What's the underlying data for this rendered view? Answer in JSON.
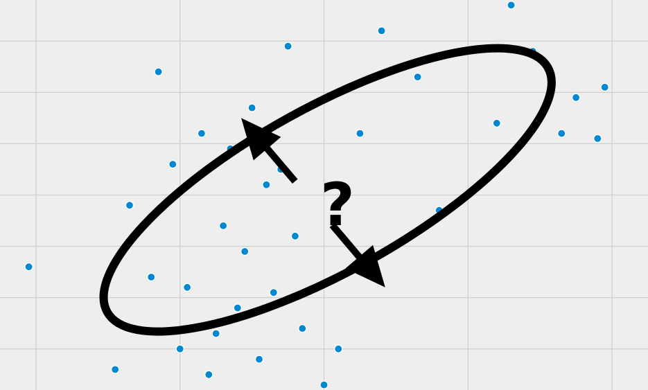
{
  "chart_data": {
    "type": "scatter",
    "title": "",
    "xlabel": "",
    "ylabel": "",
    "xlim": [
      -4.5,
      4.5
    ],
    "ylim": [
      -3.8,
      3.8
    ],
    "grid": true,
    "legend": "none",
    "point_color": "#0288d1",
    "background": "#eeeeee",
    "grid_color": "#cfcfcf",
    "series": [
      {
        "points": [
          [
            -4.1,
            -1.4
          ],
          [
            -3.0,
            -2.3
          ],
          [
            -2.9,
            -3.4
          ],
          [
            -2.7,
            -0.2
          ],
          [
            -2.4,
            -1.6
          ],
          [
            -2.3,
            2.4
          ],
          [
            -2.1,
            0.6
          ],
          [
            -2.0,
            -3.0
          ],
          [
            -1.9,
            -1.8
          ],
          [
            -1.7,
            1.2
          ],
          [
            -1.6,
            -3.5
          ],
          [
            -1.5,
            -2.7
          ],
          [
            -1.4,
            -0.6
          ],
          [
            -1.3,
            0.9
          ],
          [
            -1.2,
            -2.2
          ],
          [
            -1.1,
            -1.1
          ],
          [
            -1.0,
            1.7
          ],
          [
            -0.9,
            -3.2
          ],
          [
            -0.8,
            0.2
          ],
          [
            -0.7,
            -1.9
          ],
          [
            -0.6,
            0.5
          ],
          [
            -0.5,
            2.9
          ],
          [
            -0.4,
            -0.8
          ],
          [
            -0.3,
            -2.6
          ],
          [
            0.0,
            -3.7
          ],
          [
            0.2,
            -3.0
          ],
          [
            0.5,
            1.2
          ],
          [
            0.8,
            3.2
          ],
          [
            1.3,
            2.3
          ],
          [
            1.6,
            -0.3
          ],
          [
            2.4,
            1.4
          ],
          [
            2.6,
            3.7
          ],
          [
            2.9,
            2.8
          ],
          [
            3.3,
            1.2
          ],
          [
            3.5,
            1.9
          ],
          [
            3.8,
            1.1
          ],
          [
            3.9,
            2.1
          ]
        ]
      }
    ],
    "annotations": {
      "ellipse": {
        "cx": 0.05,
        "cy": 0.1,
        "rx": 3.5,
        "ry": 1.6,
        "angle_deg": -29
      },
      "arrow": {
        "from": [
          -1.15,
          1.5
        ],
        "to": [
          0.85,
          -1.8
        ]
      },
      "label": "?"
    }
  }
}
